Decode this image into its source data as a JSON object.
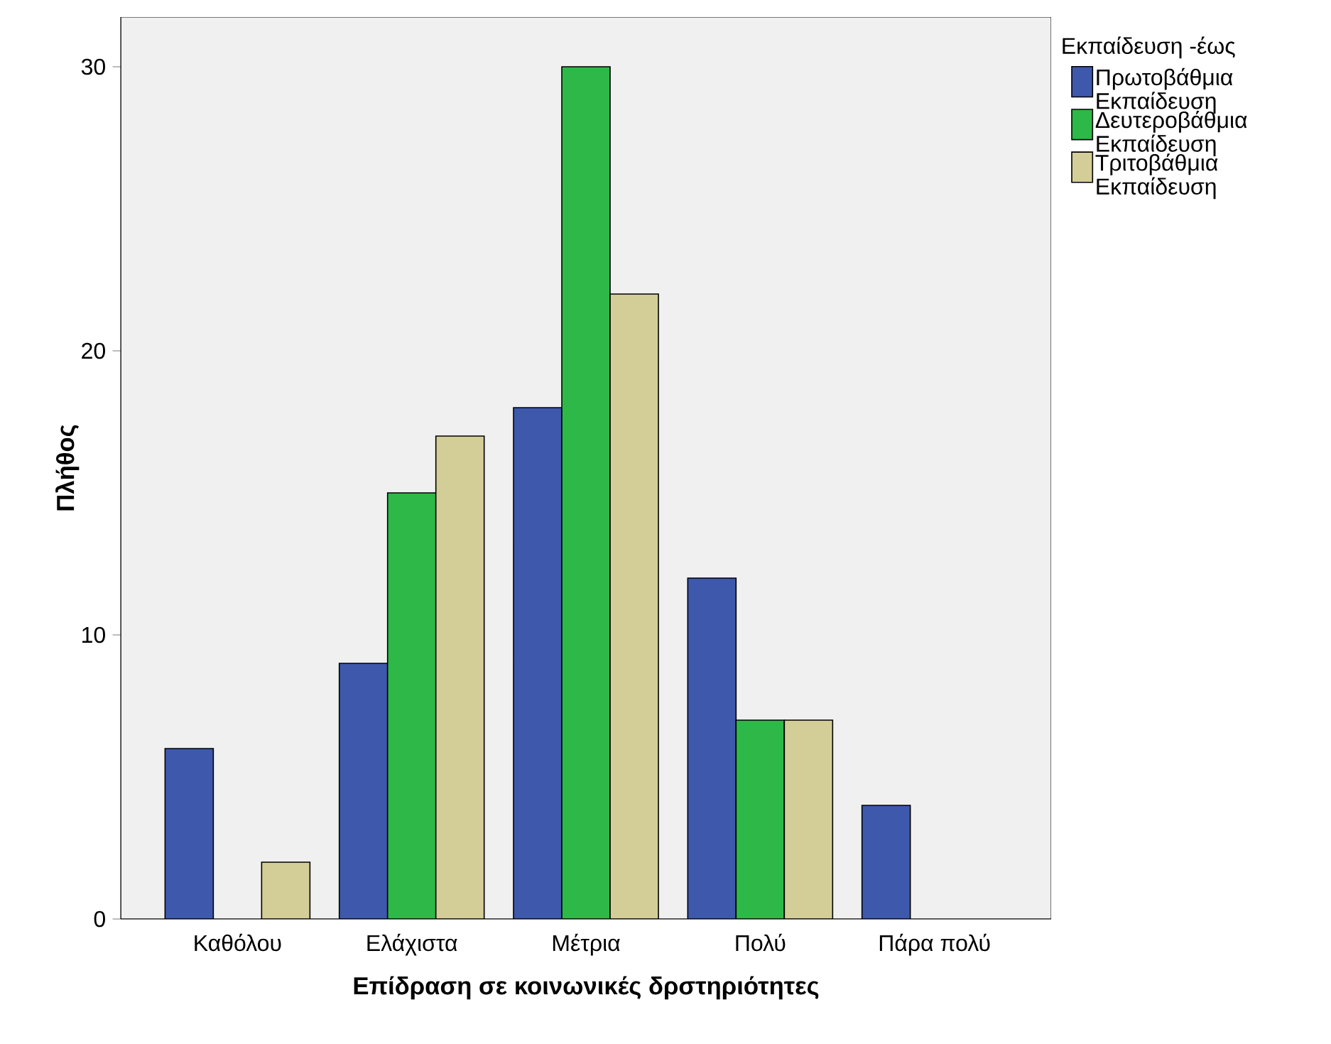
{
  "chart_data": {
    "type": "bar",
    "xlabel": "Επίδραση σε κοινωνικές δρστηριότητες",
    "ylabel": "Πλήθος",
    "legend_title": "Εκπαίδευση -έως",
    "categories": [
      "Καθόλου",
      "Ελάχιστα",
      "Μέτρια",
      "Πολύ",
      "Πάρα πολύ"
    ],
    "series": [
      {
        "name": "Πρωτοβάθμια Εκπαίδευση",
        "color": "#3e58ac",
        "values": [
          6,
          9,
          18,
          12,
          4
        ]
      },
      {
        "name": "Δευτεροβάθμια Εκπαίδευση",
        "color": "#2eb848",
        "values": [
          null,
          15,
          30,
          7,
          null
        ]
      },
      {
        "name": "Τριτοβάθμια Εκπαίδευση",
        "color": "#d3ce97",
        "values": [
          2,
          17,
          22,
          7,
          null
        ]
      }
    ],
    "ylim": [
      0,
      31.75
    ],
    "yticks": [
      0,
      10,
      20,
      30
    ],
    "legend": "top right"
  }
}
